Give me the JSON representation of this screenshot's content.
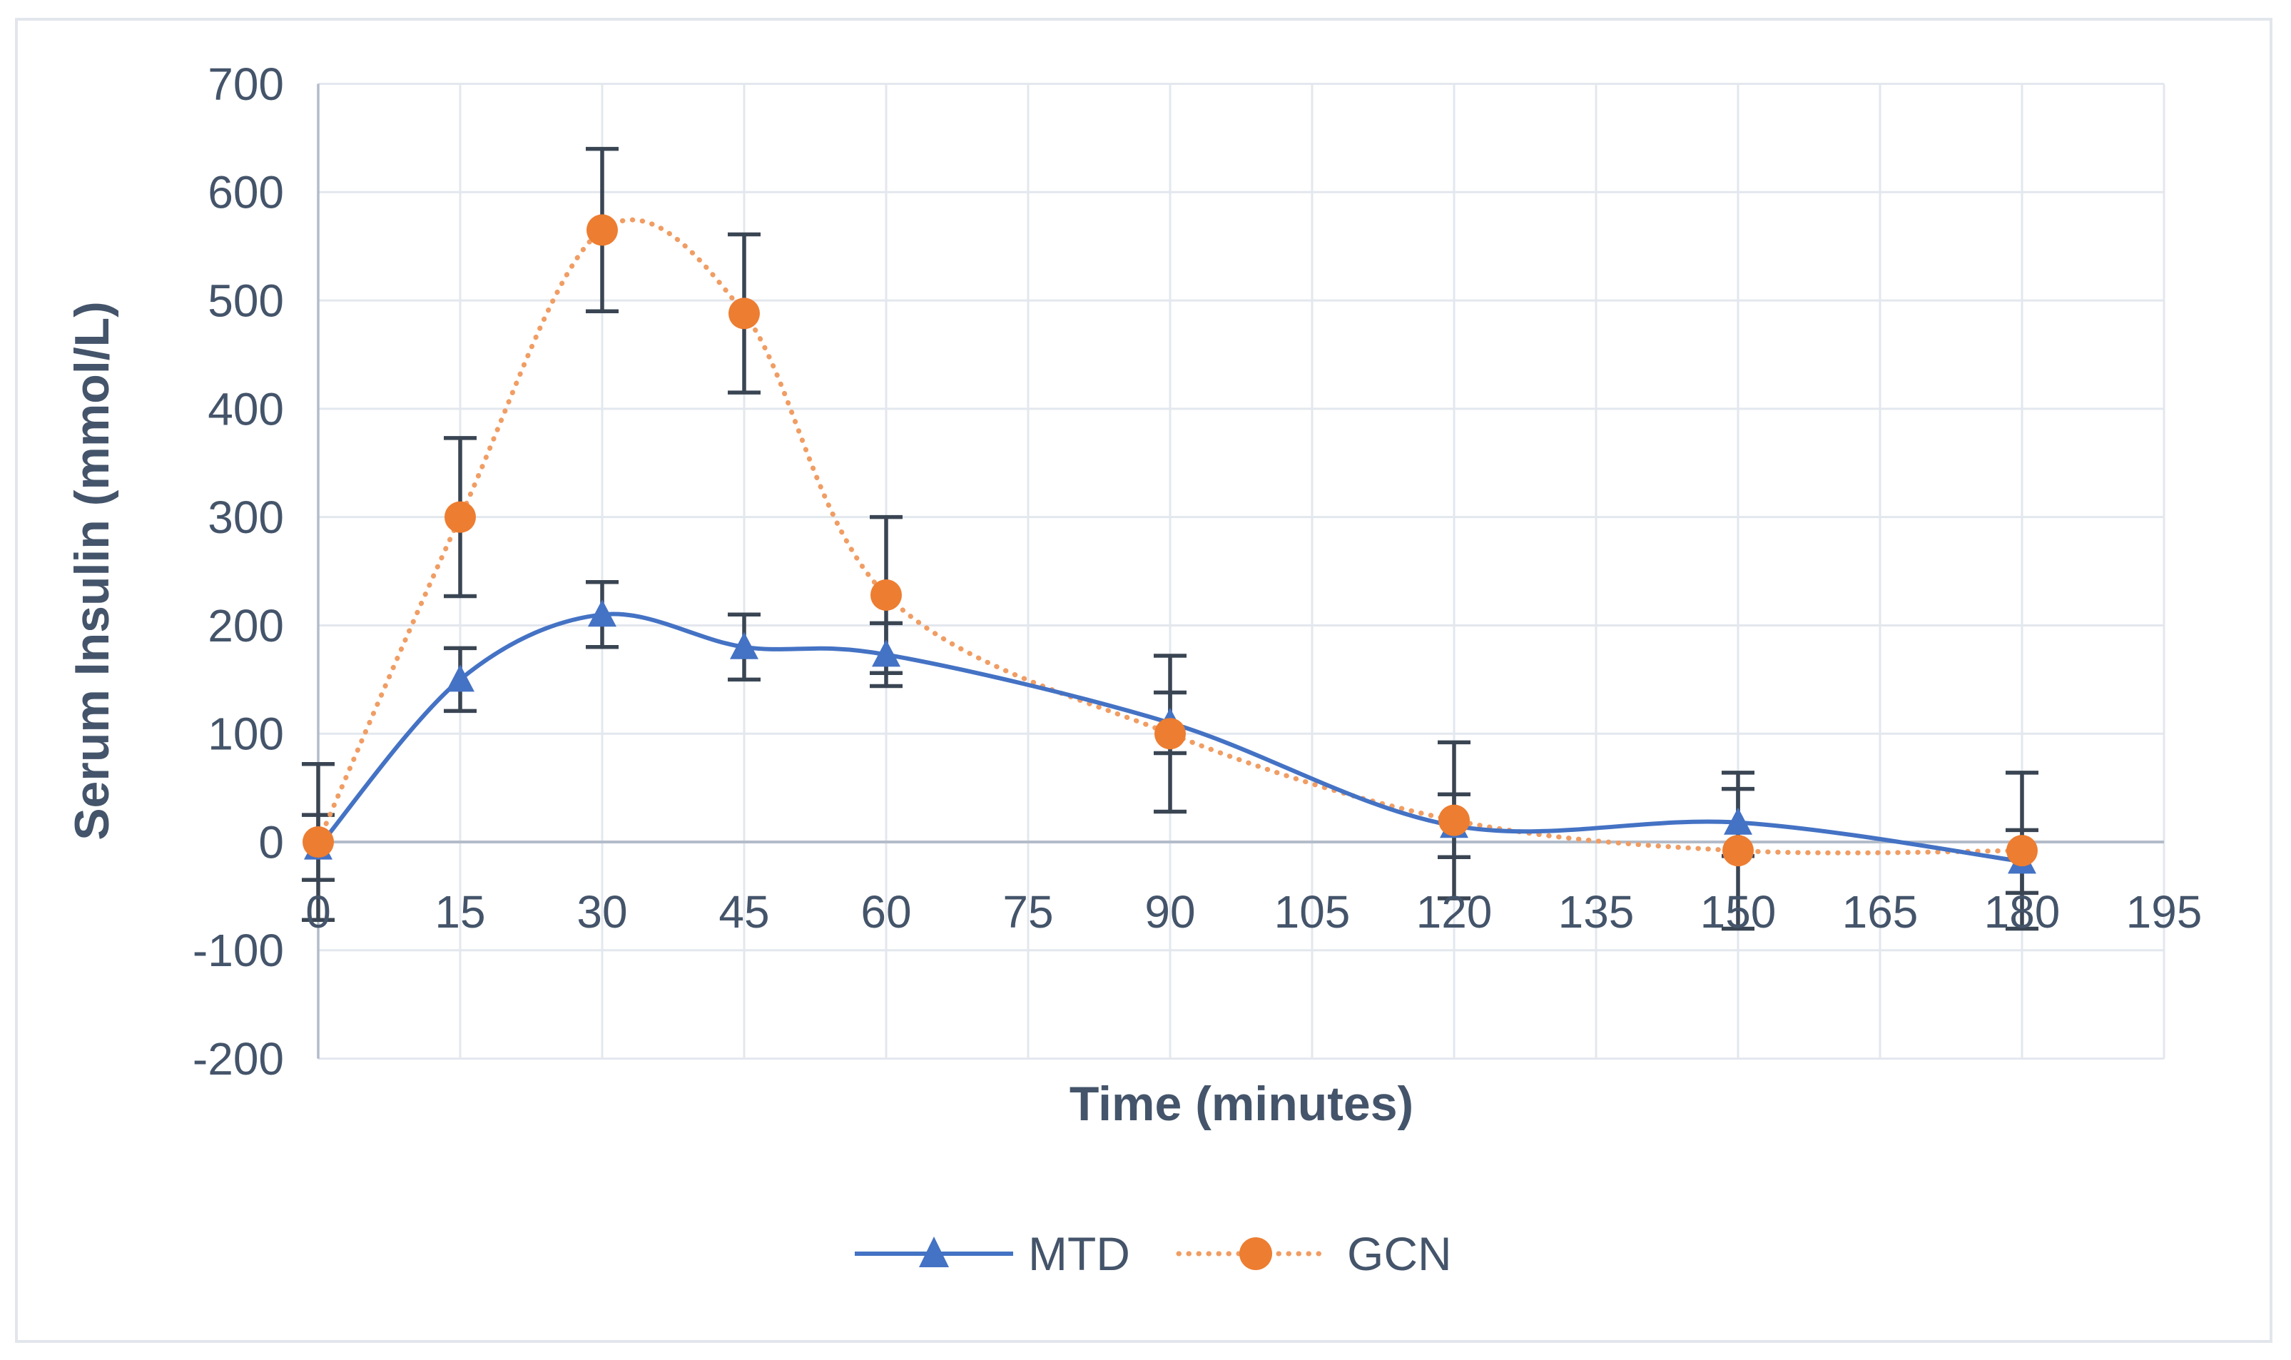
{
  "chart_data": {
    "type": "line",
    "title": "",
    "xlabel": "Time (minutes)",
    "ylabel": "Serum Insulin (mmol/L)",
    "x": [
      0,
      15,
      30,
      45,
      60,
      90,
      120,
      150,
      180
    ],
    "series": [
      {
        "name": "MTD",
        "values": [
          -5,
          150,
          210,
          180,
          173,
          110,
          15,
          18,
          -18
        ],
        "error": [
          30,
          29,
          30,
          30,
          29,
          28,
          29,
          31,
          29
        ],
        "color": "#4472C4",
        "marker": "triangle",
        "line_style": "solid"
      },
      {
        "name": "GCN",
        "values": [
          0,
          300,
          565,
          488,
          228,
          100,
          20,
          -8,
          -8
        ],
        "error": [
          72,
          73,
          75,
          73,
          72,
          72,
          72,
          72,
          72
        ],
        "color": "#ED7D31",
        "dot_color": "#F09D64",
        "marker": "circle",
        "line_style": "dotted"
      }
    ],
    "xticks": [
      0,
      15,
      30,
      45,
      60,
      75,
      90,
      105,
      120,
      135,
      150,
      165,
      180,
      195
    ],
    "yticks": [
      700,
      600,
      500,
      400,
      300,
      200,
      100,
      0,
      -100,
      -200
    ],
    "xlim": [
      0,
      195
    ],
    "ylim": [
      -200,
      700
    ],
    "grid": true,
    "gridline_color": "#E3E7EE",
    "zero_line_color": "#B3BCC9",
    "axis_line_color": "#B3BCC9",
    "error_bar_color": "#3A4553",
    "text_color": "#44546A",
    "legend_position": "bottom",
    "smooth_lines": true
  },
  "figure": {
    "background": "#FFFFFF",
    "border_color": "#E2E6EC"
  }
}
